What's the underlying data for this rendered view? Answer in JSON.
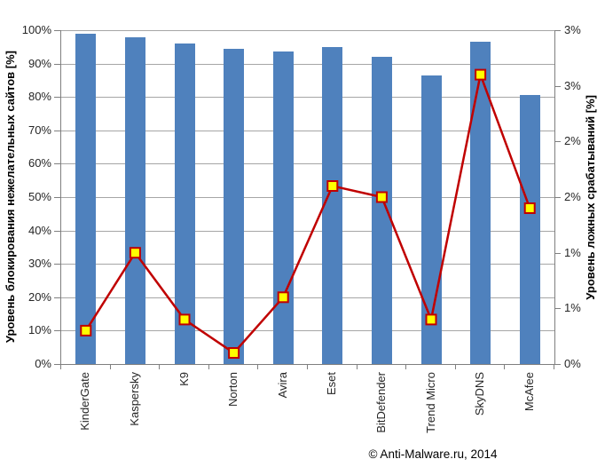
{
  "chart": {
    "left_axis_title": "Уровень блокирования нежелательных сайтов [%]",
    "right_axis_title": "Уровень ложных срабатываний [%]",
    "copyright": "© Anti-Malware.ru, 2014",
    "colors": {
      "bar_fill": "#4F81BD",
      "line": "#C00000",
      "marker_fill": "#FFFF00",
      "marker_border": "#C00000",
      "gridline": "#A6A6A6",
      "axis_line": "#7F7F7F",
      "background": "#FFFFFF",
      "text": "#262626"
    }
  },
  "chart_data": {
    "type": "bar+line",
    "title": "",
    "categories": [
      "KinderGate",
      "Kaspersky",
      "K9",
      "Norton",
      "Avira",
      "Eset",
      "BitDefender",
      "Trend Micro",
      "SkyDNS",
      "McAfee"
    ],
    "series": [
      {
        "name": "Уровень блокирования нежелательных сайтов [%]",
        "type": "bar",
        "axis": "left",
        "color": "#4F81BD",
        "values": [
          99,
          98,
          96,
          94.5,
          93.5,
          95,
          92,
          86.5,
          96.5,
          80.5
        ]
      },
      {
        "name": "Уровень ложных срабатываний [%]",
        "type": "line",
        "axis": "right",
        "color": "#C00000",
        "marker": "yellow-square",
        "values": [
          0.3,
          1.0,
          0.4,
          0.1,
          0.6,
          1.6,
          1.5,
          0.4,
          2.6,
          1.4
        ]
      }
    ],
    "left_axis": {
      "label": "Уровень блокирования нежелательных сайтов [%]",
      "min": 0,
      "max": 100,
      "tick_step": 10,
      "tick_labels": [
        "100%",
        "90%",
        "80%",
        "70%",
        "60%",
        "50%",
        "40%",
        "30%",
        "20%",
        "10%",
        "0%"
      ]
    },
    "right_axis": {
      "label": "Уровень ложных срабатываний [%]",
      "min": 0,
      "max": 3,
      "tick_step": 0.5,
      "tick_values": [
        3,
        2.5,
        2,
        1.5,
        1,
        0.5,
        0
      ],
      "tick_labels": [
        "3%",
        "3%",
        "2%",
        "2%",
        "1%",
        "1%",
        "0%"
      ]
    },
    "grid": "horizontal",
    "legend": "none",
    "annotations": [
      "© Anti-Malware.ru, 2014"
    ]
  }
}
